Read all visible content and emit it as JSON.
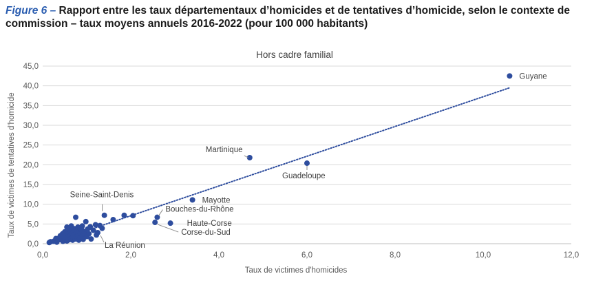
{
  "figure": {
    "label": "Figure 6 –",
    "title": "Rapport entre les taux départementaux d’homicides et de tentatives d’homicide, selon le contexte de commission – taux moyens annuels 2016-2022 (pour 100 000 habitants)"
  },
  "chart_data": {
    "type": "scatter",
    "title": "Hors cadre familial",
    "xlabel": "Taux de victimes d'homicides",
    "ylabel": "Taux de victimes de tentatives d'homicide",
    "xlim": [
      0,
      12
    ],
    "ylim": [
      0,
      45
    ],
    "x_ticks": [
      "0,0",
      "2,0",
      "4,0",
      "6,0",
      "8,0",
      "10,0",
      "12,0"
    ],
    "y_ticks": [
      "0,0",
      "5,0",
      "10,0",
      "15,0",
      "20,0",
      "25,0",
      "30,0",
      "35,0",
      "40,0",
      "45,0"
    ],
    "grid": "horizontal",
    "legend": "none",
    "colors": {
      "points": "#2e4d9e",
      "trendline": "#2e4d9e",
      "grid": "#d9d9d9",
      "axis_text": "#595959"
    },
    "trendline": {
      "style": "dotted",
      "from": [
        0.2,
        0.3
      ],
      "to": [
        10.6,
        39.5
      ]
    },
    "labeled_points": [
      {
        "name": "Guyane",
        "x": 10.6,
        "y": 42.5
      },
      {
        "name": "Martinique",
        "x": 4.7,
        "y": 21.8
      },
      {
        "name": "Guadeloupe",
        "x": 6.0,
        "y": 20.4
      },
      {
        "name": "Mayotte",
        "x": 3.4,
        "y": 11.1
      },
      {
        "name": "Seine-Saint-Denis",
        "x": 1.4,
        "y": 7.2
      },
      {
        "name": "Bouches-du-Rhône",
        "x": 2.6,
        "y": 6.7
      },
      {
        "name": "Haute-Corse",
        "x": 2.9,
        "y": 5.2
      },
      {
        "name": "Corse-du-Sud",
        "x": 2.55,
        "y": 5.4
      },
      {
        "name": "La Réunion",
        "x": 1.25,
        "y": 2.8
      }
    ],
    "points": [
      [
        0.15,
        0.3
      ],
      [
        0.18,
        0.5
      ],
      [
        0.25,
        0.6
      ],
      [
        0.3,
        1.3
      ],
      [
        0.32,
        0.4
      ],
      [
        0.35,
        0.9
      ],
      [
        0.38,
        1.5
      ],
      [
        0.4,
        2.0
      ],
      [
        0.42,
        1.0
      ],
      [
        0.45,
        2.5
      ],
      [
        0.46,
        0.6
      ],
      [
        0.48,
        1.8
      ],
      [
        0.5,
        3.0
      ],
      [
        0.5,
        1.2
      ],
      [
        0.52,
        2.2
      ],
      [
        0.55,
        4.2
      ],
      [
        0.55,
        0.7
      ],
      [
        0.57,
        1.6
      ],
      [
        0.58,
        2.8
      ],
      [
        0.6,
        3.6
      ],
      [
        0.6,
        1.0
      ],
      [
        0.62,
        2.0
      ],
      [
        0.63,
        3.2
      ],
      [
        0.65,
        1.4
      ],
      [
        0.65,
        4.5
      ],
      [
        0.66,
        2.6
      ],
      [
        0.68,
        0.9
      ],
      [
        0.7,
        3.0
      ],
      [
        0.7,
        1.8
      ],
      [
        0.72,
        3.8
      ],
      [
        0.72,
        2.3
      ],
      [
        0.74,
        1.2
      ],
      [
        0.75,
        6.7
      ],
      [
        0.76,
        2.9
      ],
      [
        0.78,
        3.4
      ],
      [
        0.78,
        1.6
      ],
      [
        0.8,
        4.2
      ],
      [
        0.8,
        2.1
      ],
      [
        0.82,
        0.9
      ],
      [
        0.83,
        3.0
      ],
      [
        0.85,
        1.4
      ],
      [
        0.86,
        2.6
      ],
      [
        0.88,
        3.6
      ],
      [
        0.9,
        2.0
      ],
      [
        0.9,
        4.5
      ],
      [
        0.92,
        1.1
      ],
      [
        0.95,
        3.1
      ],
      [
        0.96,
        2.4
      ],
      [
        0.98,
        5.6
      ],
      [
        1.0,
        1.8
      ],
      [
        1.02,
        3.7
      ],
      [
        1.05,
        2.5
      ],
      [
        1.08,
        4.3
      ],
      [
        1.1,
        1.2
      ],
      [
        1.15,
        3.4
      ],
      [
        1.2,
        4.8
      ],
      [
        1.22,
        2.2
      ],
      [
        1.3,
        4.6
      ],
      [
        1.35,
        3.9
      ],
      [
        1.6,
        6.1
      ],
      [
        1.85,
        7.2
      ],
      [
        2.05,
        7.1
      ]
    ]
  }
}
